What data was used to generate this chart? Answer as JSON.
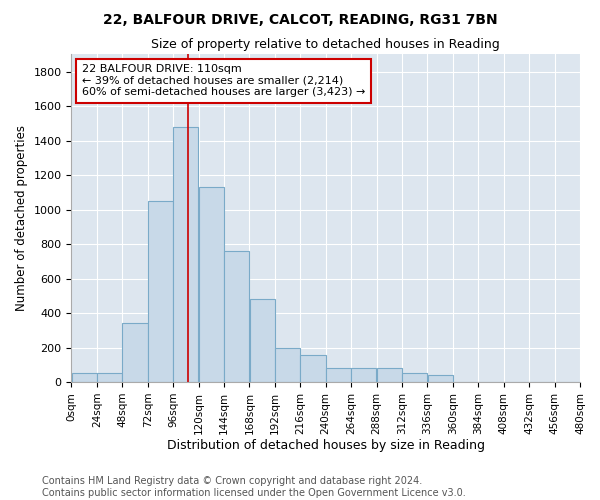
{
  "title1": "22, BALFOUR DRIVE, CALCOT, READING, RG31 7BN",
  "title2": "Size of property relative to detached houses in Reading",
  "xlabel": "Distribution of detached houses by size in Reading",
  "ylabel": "Number of detached properties",
  "bin_edges": [
    0,
    24,
    48,
    72,
    96,
    120,
    144,
    168,
    192,
    216,
    240,
    264,
    288,
    312,
    336,
    360,
    384,
    408,
    432,
    456,
    480
  ],
  "bar_heights": [
    50,
    50,
    340,
    1050,
    1480,
    1130,
    760,
    480,
    195,
    155,
    80,
    80,
    80,
    50,
    40,
    0,
    0,
    0,
    0,
    0
  ],
  "bar_color": "#c8d9e8",
  "bar_edge_color": "#7aaac8",
  "marker_x": 110,
  "marker_color": "#cc0000",
  "annotation_text_line1": "22 BALFOUR DRIVE: 110sqm",
  "annotation_text_line2": "← 39% of detached houses are smaller (2,214)",
  "annotation_text_line3": "60% of semi-detached houses are larger (3,423) →",
  "annotation_box_color": "#cc0000",
  "ylim": [
    0,
    1900
  ],
  "yticks": [
    0,
    200,
    400,
    600,
    800,
    1000,
    1200,
    1400,
    1600,
    1800
  ],
  "xlim": [
    0,
    480
  ],
  "footer1": "Contains HM Land Registry data © Crown copyright and database right 2024.",
  "footer2": "Contains public sector information licensed under the Open Government Licence v3.0.",
  "bg_color": "#e8eef4",
  "plot_bg_color": "#dde6ef"
}
